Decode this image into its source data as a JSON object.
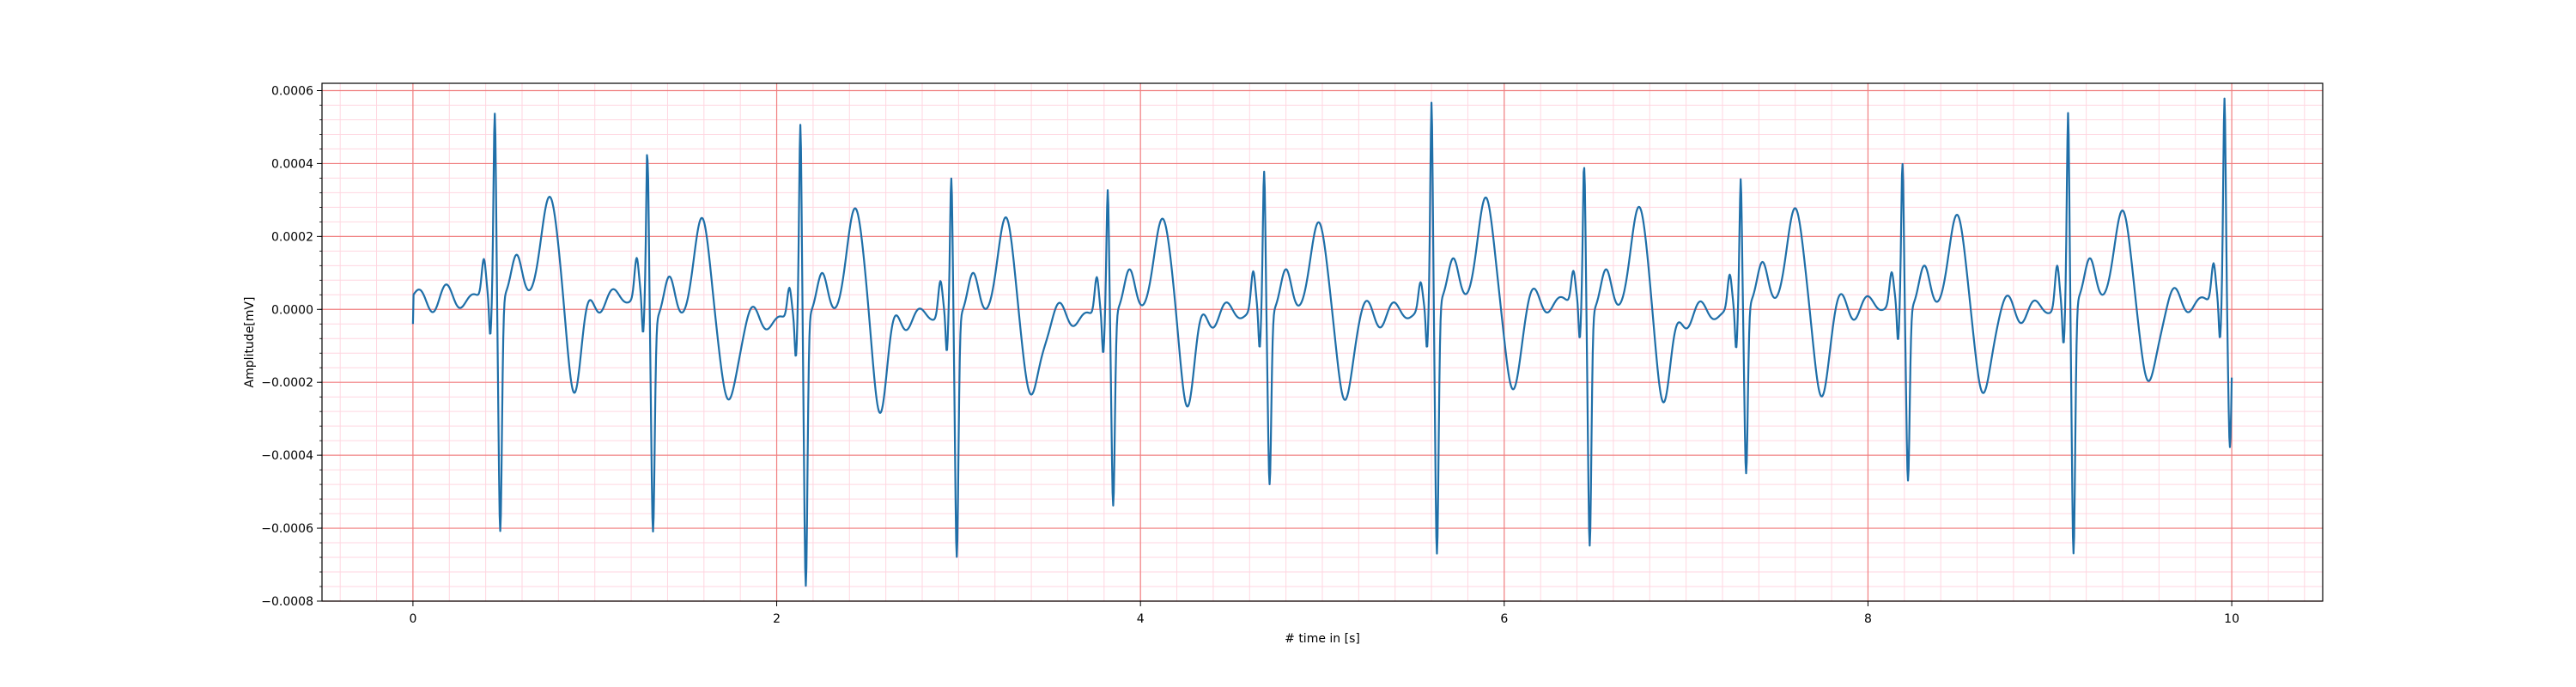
{
  "chart_data": {
    "type": "line",
    "title": "",
    "xlabel": "# time in [s]",
    "ylabel": "Amplitude[mV]",
    "xlim": [
      -0.5,
      10.5
    ],
    "ylim": [
      -0.0008,
      0.00062
    ],
    "x_ticks": [
      0,
      2,
      4,
      6,
      8,
      10
    ],
    "x_tick_labels": [
      "0",
      "2",
      "4",
      "6",
      "8",
      "10"
    ],
    "y_ticks": [
      -0.0008,
      -0.0006,
      -0.0004,
      -0.0002,
      0.0,
      0.0002,
      0.0004,
      0.0006
    ],
    "y_tick_labels": [
      "−0.0008",
      "−0.0006",
      "−0.0004",
      "−0.0002",
      "0.0000",
      "0.0002",
      "0.0004",
      "0.0006"
    ],
    "grid": {
      "major": true,
      "minor": true,
      "major_color": "#f08080",
      "minor_color": "#ffd6e0"
    },
    "line_color": "#1f6fa8",
    "beats": [
      {
        "t": 0.45,
        "r": 0.00051,
        "s": -0.00064,
        "p": 0.00011,
        "tw": 0.00028,
        "base": 3e-05
      },
      {
        "t": 1.29,
        "r": 0.00044,
        "s": -0.00058,
        "p": 0.00011,
        "tw": 0.00028,
        "base": -3e-05
      },
      {
        "t": 2.13,
        "r": 0.00053,
        "s": -0.00074,
        "p": 9e-05,
        "tw": 0.0003,
        "base": -2e-05
      },
      {
        "t": 2.96,
        "r": 0.00038,
        "s": -0.00066,
        "p": 0.0001,
        "tw": 0.00027,
        "base": -2e-05
      },
      {
        "t": 3.82,
        "r": 0.00034,
        "s": -0.00053,
        "p": 0.00011,
        "tw": 0.00026,
        "base": -1e-05
      },
      {
        "t": 4.68,
        "r": 0.00039,
        "s": -0.00047,
        "p": 0.00011,
        "tw": 0.00025,
        "base": -1e-05
      },
      {
        "t": 5.6,
        "r": 0.00055,
        "s": -0.00069,
        "p": 8e-05,
        "tw": 0.00029,
        "base": 2e-05
      },
      {
        "t": 6.44,
        "r": 0.0004,
        "s": -0.00064,
        "p": 9e-05,
        "tw": 0.00029,
        "base": -1e-05
      },
      {
        "t": 7.3,
        "r": 0.00035,
        "s": -0.00046,
        "p": 0.0001,
        "tw": 0.00027,
        "base": 1e-05
      },
      {
        "t": 8.19,
        "r": 0.0004,
        "s": -0.00047,
        "p": 9e-05,
        "tw": 0.00026,
        "base": 0.0
      },
      {
        "t": 9.1,
        "r": 0.00052,
        "s": -0.00069,
        "p": 0.00012,
        "tw": 0.00025,
        "base": 2e-05
      },
      {
        "t": 9.96,
        "r": 0.00055,
        "s": -0.00041,
        "p": 0.00011,
        "tw": 0.0,
        "base": 3e-05
      }
    ],
    "x_start": 0.0,
    "x_end": 10.0
  }
}
